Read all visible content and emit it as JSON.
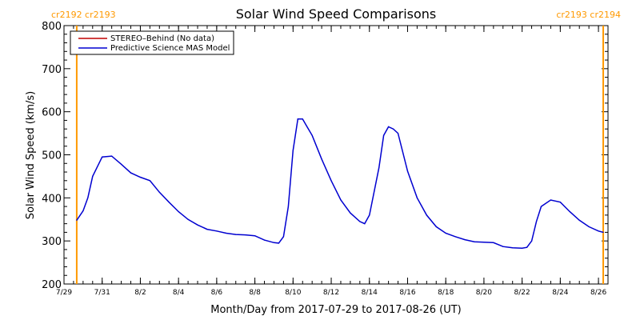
{
  "chart_data": {
    "type": "line",
    "title": "Solar Wind Speed Comparisons",
    "xlabel": "Month/Day from 2017-07-29 to 2017-08-26 (UT)",
    "ylabel": "Solar Wind Speed (km/s)",
    "xlim": [
      "2017-07-29",
      "2017-08-26T12:00"
    ],
    "ylim": [
      200,
      800
    ],
    "y_ticks": [
      200,
      300,
      400,
      500,
      600,
      700,
      800
    ],
    "x_ticks": [
      {
        "date": "2017-07-29",
        "label": "7/29"
      },
      {
        "date": "2017-07-31",
        "label": "7/31"
      },
      {
        "date": "2017-08-02",
        "label": "8/2"
      },
      {
        "date": "2017-08-04",
        "label": "8/4"
      },
      {
        "date": "2017-08-06",
        "label": "8/6"
      },
      {
        "date": "2017-08-08",
        "label": "8/8"
      },
      {
        "date": "2017-08-10",
        "label": "8/10"
      },
      {
        "date": "2017-08-12",
        "label": "8/12"
      },
      {
        "date": "2017-08-14",
        "label": "8/14"
      },
      {
        "date": "2017-08-16",
        "label": "8/16"
      },
      {
        "date": "2017-08-18",
        "label": "8/18"
      },
      {
        "date": "2017-08-20",
        "label": "8/20"
      },
      {
        "date": "2017-08-22",
        "label": "8/22"
      },
      {
        "date": "2017-08-24",
        "label": "8/24"
      },
      {
        "date": "2017-08-26",
        "label": "8/26"
      }
    ],
    "legend_position": "top-left",
    "series": [
      {
        "name": "STEREO–Behind (No data)",
        "color": "#c00000",
        "x": [],
        "y": []
      },
      {
        "name": "Predictive Science MAS Model",
        "color": "#0000d0",
        "x": [
          "2017-07-29T16:00",
          "2017-07-30T00:00",
          "2017-07-30T06:00",
          "2017-07-30T12:00",
          "2017-07-31T00:00",
          "2017-07-31T12:00",
          "2017-08-01T00:00",
          "2017-08-01T12:00",
          "2017-08-02T00:00",
          "2017-08-02T12:00",
          "2017-08-03T00:00",
          "2017-08-03T12:00",
          "2017-08-04T00:00",
          "2017-08-04T12:00",
          "2017-08-05T00:00",
          "2017-08-05T12:00",
          "2017-08-06T00:00",
          "2017-08-06T12:00",
          "2017-08-07T00:00",
          "2017-08-07T12:00",
          "2017-08-08T00:00",
          "2017-08-08T12:00",
          "2017-08-09T00:00",
          "2017-08-09T06:00",
          "2017-08-09T12:00",
          "2017-08-09T18:00",
          "2017-08-10T00:00",
          "2017-08-10T06:00",
          "2017-08-10T12:00",
          "2017-08-11T00:00",
          "2017-08-11T12:00",
          "2017-08-12T00:00",
          "2017-08-12T12:00",
          "2017-08-13T00:00",
          "2017-08-13T12:00",
          "2017-08-13T18:00",
          "2017-08-14T00:00",
          "2017-08-14T12:00",
          "2017-08-14T18:00",
          "2017-08-15T00:00",
          "2017-08-15T06:00",
          "2017-08-15T12:00",
          "2017-08-16T00:00",
          "2017-08-16T12:00",
          "2017-08-17T00:00",
          "2017-08-17T12:00",
          "2017-08-18T00:00",
          "2017-08-18T12:00",
          "2017-08-19T00:00",
          "2017-08-19T12:00",
          "2017-08-20T00:00",
          "2017-08-20T12:00",
          "2017-08-21T00:00",
          "2017-08-21T12:00",
          "2017-08-22T00:00",
          "2017-08-22T06:00",
          "2017-08-22T12:00",
          "2017-08-22T18:00",
          "2017-08-23T00:00",
          "2017-08-23T12:00",
          "2017-08-24T00:00",
          "2017-08-24T12:00",
          "2017-08-25T00:00",
          "2017-08-25T12:00",
          "2017-08-26T00:00",
          "2017-08-26T06:00"
        ],
        "y": [
          348,
          370,
          400,
          450,
          495,
          497,
          478,
          458,
          448,
          440,
          413,
          390,
          368,
          350,
          337,
          327,
          323,
          318,
          315,
          314,
          312,
          302,
          296,
          295,
          310,
          380,
          510,
          583,
          583,
          545,
          490,
          440,
          395,
          365,
          345,
          340,
          360,
          470,
          545,
          565,
          560,
          550,
          462,
          400,
          360,
          333,
          318,
          310,
          303,
          298,
          297,
          296,
          287,
          284,
          283,
          285,
          300,
          345,
          380,
          395,
          390,
          368,
          348,
          333,
          323,
          320
        ]
      }
    ],
    "markers": [
      {
        "date": "2017-07-29T16:00",
        "label": "cr2192 cr2193",
        "color": "#ff9900"
      },
      {
        "date": "2017-08-26T06:00",
        "label": "cr2193 cr2194",
        "color": "#ff9900"
      }
    ]
  }
}
